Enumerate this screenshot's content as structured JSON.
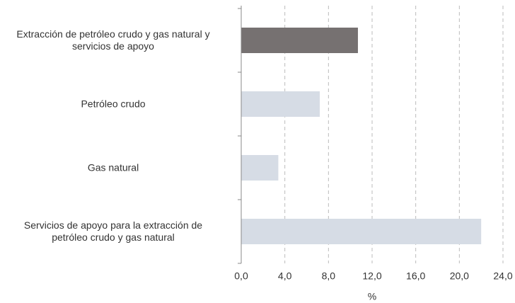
{
  "chart_data": {
    "type": "hbar",
    "categories": [
      "Extracción de petróleo crudo y gas natural y\nservicios de apoyo",
      "Petróleo crudo",
      "Gas natural",
      "Servicios de apoyo para la extracción de\npetróleo crudo y gas natural"
    ],
    "values": [
      10.7,
      7.2,
      3.4,
      22.0
    ],
    "colors": [
      "#767171",
      "#d6dce5",
      "#d6dce5",
      "#d6dce5"
    ],
    "xlabel": "%",
    "xlim": [
      0,
      24
    ],
    "xticks": [
      {
        "value": 0,
        "label": "0,0"
      },
      {
        "value": 4,
        "label": "4,0"
      },
      {
        "value": 8,
        "label": "8,0"
      },
      {
        "value": 12,
        "label": "12,0"
      },
      {
        "value": 16,
        "label": "16,0"
      },
      {
        "value": 20,
        "label": "20,0"
      },
      {
        "value": 24,
        "label": "24,0"
      }
    ],
    "grid": true
  }
}
